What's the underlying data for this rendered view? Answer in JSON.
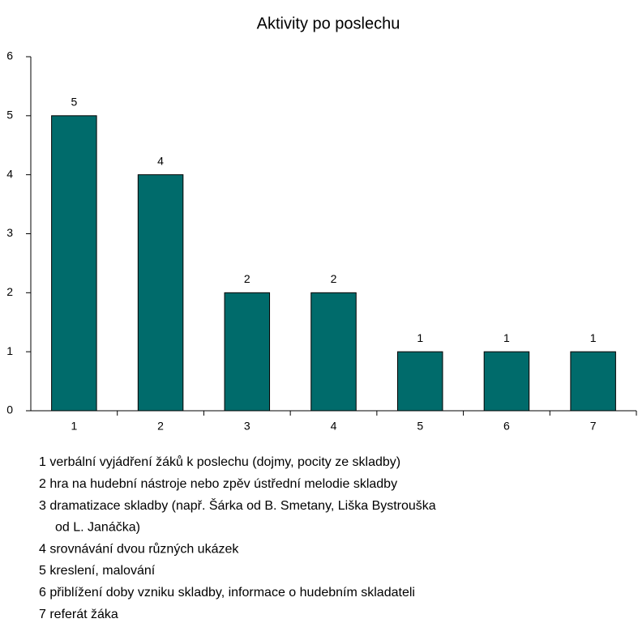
{
  "chart_data": {
    "type": "bar",
    "title": "Aktivity po poslechu",
    "categories": [
      "1",
      "2",
      "3",
      "4",
      "5",
      "6",
      "7"
    ],
    "values": [
      5,
      4,
      2,
      2,
      1,
      1,
      1
    ],
    "color": "#006b6b",
    "ylim": [
      0,
      6
    ],
    "yticks": [
      0,
      1,
      2,
      3,
      4,
      5,
      6
    ],
    "grid": false,
    "notes": [
      "1 verbální vyjádření žáků k poslechu (dojmy, pocity ze skladby)",
      "2 hra na hudební nástroje nebo zpěv ústřední melodie skladby",
      "3 dramatizace skladby (např. Šárka od B. Smetany, Liška Bystrouška",
      "od L. Janáčka)",
      "4 srovnávání dvou různých ukázek",
      "5 kreslení, malování",
      "6 přiblížení doby vzniku skladby, informace o hudebním skladateli",
      "7 referát žáka"
    ]
  }
}
